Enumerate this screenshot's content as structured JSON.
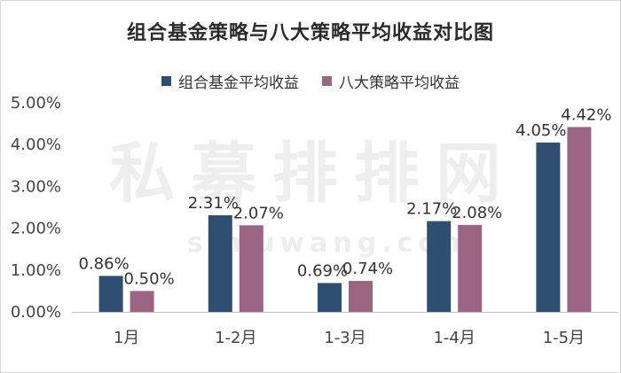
{
  "watermark": {
    "main": "私募排排网",
    "sub": "simuwang.com"
  },
  "colors": {
    "series1": "#2e4f71",
    "series2": "#9c6483",
    "axis": "#c0c0c0"
  },
  "chart_data": {
    "type": "bar",
    "title": "组合基金策略与八大策略平均收益对比图",
    "categories": [
      "1月",
      "1-2月",
      "1-3月",
      "1-4月",
      "1-5月"
    ],
    "series": [
      {
        "name": "组合基金平均收益",
        "values": [
          0.86,
          2.31,
          0.69,
          2.17,
          4.05
        ],
        "labels": [
          "0.86%",
          "2.31%",
          "0.69%",
          "2.17%",
          "4.05%"
        ]
      },
      {
        "name": "八大策略平均收益",
        "values": [
          0.5,
          2.07,
          0.74,
          2.08,
          4.42
        ],
        "labels": [
          "0.50%",
          "2.07%",
          "0.74%",
          "2.08%",
          "4.42%"
        ]
      }
    ],
    "yticks": [
      "0.00%",
      "1.00%",
      "2.00%",
      "3.00%",
      "4.00%",
      "5.00%"
    ],
    "ylim": [
      0,
      5
    ],
    "grid": false,
    "legend_position": "top"
  }
}
